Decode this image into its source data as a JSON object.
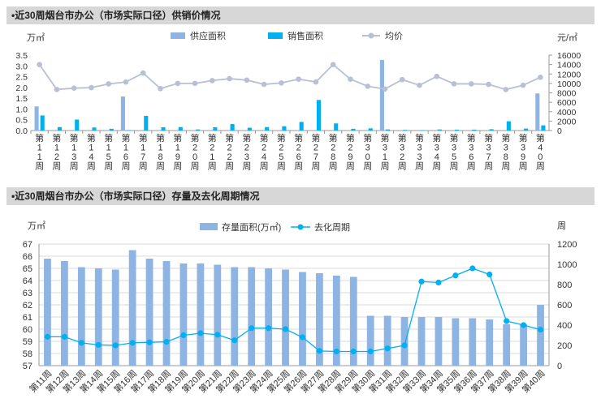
{
  "colors": {
    "supply": "#8eb4e3",
    "sales": "#00b0f0",
    "price": "#b8c0d6",
    "stock": "#8eb4e3",
    "cycle": "#00b0f0",
    "header_bg": "#d7d7d7",
    "grid": "#d9d9d9"
  },
  "chart_data": [
    {
      "type": "bar",
      "title": "•近30周烟台市办公（市场实际口径）供销价情况",
      "left_unit": "万㎡",
      "right_unit": "元/㎡",
      "categories": [
        "第11周",
        "第12周",
        "第13周",
        "第14周",
        "第15周",
        "第16周",
        "第17周",
        "第18周",
        "第19周",
        "第20周",
        "第21周",
        "第22周",
        "第23周",
        "第24周",
        "第25周",
        "第26周",
        "第27周",
        "第28周",
        "第29周",
        "第30周",
        "第31周",
        "第32周",
        "第33周",
        "第34周",
        "第35周",
        "第36周",
        "第37周",
        "第38周",
        "第39周",
        "第40周"
      ],
      "ylim_left": [
        0,
        3.5
      ],
      "yticks_left": [
        "0.0",
        "0.5",
        "1.0",
        "1.5",
        "2.0",
        "2.5",
        "3.0",
        "3.5"
      ],
      "ylim_right": [
        0,
        16000
      ],
      "yticks_right": [
        "0",
        "2000",
        "4000",
        "6000",
        "8000",
        "10000",
        "12000",
        "14000",
        "16000"
      ],
      "legend_position": "top",
      "series": [
        {
          "name": "供应面积",
          "kind": "bar",
          "axis": "left",
          "values": [
            1.12,
            0,
            0,
            0,
            0,
            1.58,
            0,
            0,
            0,
            0,
            0,
            0,
            0,
            0,
            0,
            0,
            0,
            0,
            0,
            0,
            3.28,
            0,
            0,
            0,
            0,
            0,
            0,
            0,
            0,
            1.72
          ]
        },
        {
          "name": "销售面积",
          "kind": "bar",
          "axis": "left",
          "values": [
            0.7,
            0.16,
            0.51,
            0.14,
            0.08,
            0.02,
            0.68,
            0.15,
            0.16,
            0.05,
            0.15,
            0.3,
            0.13,
            0.16,
            0.2,
            0.4,
            1.42,
            0.33,
            0.08,
            0.1,
            0.05,
            0.03,
            0.02,
            0.05,
            0.04,
            0.04,
            0.06,
            0.43,
            0.09,
            0.24
          ]
        },
        {
          "name": "均价",
          "kind": "line",
          "axis": "right",
          "values": [
            14000,
            8700,
            9000,
            9100,
            9900,
            10300,
            12200,
            8900,
            10000,
            10000,
            10600,
            11000,
            10700,
            9800,
            10100,
            10900,
            10300,
            14000,
            10900,
            9400,
            8800,
            10800,
            9600,
            11500,
            9900,
            9900,
            9800,
            8700,
            9600,
            11300
          ]
        }
      ]
    },
    {
      "type": "bar",
      "title": "•近30周烟台市办公（市场实际口径）存量及去化周期情况",
      "left_unit": "万㎡",
      "right_unit": "周",
      "categories": [
        "第11周",
        "第12周",
        "第13周",
        "第14周",
        "第15周",
        "第16周",
        "第17周",
        "第18周",
        "第19周",
        "第20周",
        "第21周",
        "第22周",
        "第23周",
        "第24周",
        "第25周",
        "第26周",
        "第27周",
        "第28周",
        "第29周",
        "第30周",
        "第31周",
        "第32周",
        "第33周",
        "第34周",
        "第35周",
        "第36周",
        "第37周",
        "第38周",
        "第39周",
        "第40周"
      ],
      "ylim_left": [
        57,
        67
      ],
      "yticks_left": [
        "57",
        "58",
        "59",
        "60",
        "61",
        "62",
        "63",
        "64",
        "65",
        "66",
        "67"
      ],
      "ylim_right": [
        0,
        1200
      ],
      "yticks_right": [
        "0",
        "200",
        "400",
        "600",
        "800",
        "1000",
        "1200"
      ],
      "legend_position": "top",
      "series": [
        {
          "name": "存量面积(万㎡)",
          "kind": "bar",
          "axis": "left",
          "values": [
            65.8,
            65.6,
            65.1,
            65.0,
            64.9,
            66.5,
            65.8,
            65.6,
            65.4,
            65.4,
            65.3,
            65.1,
            65.1,
            65.0,
            64.9,
            64.7,
            64.6,
            64.4,
            64.3,
            61.1,
            61.1,
            61.0,
            61.0,
            61.0,
            60.9,
            60.9,
            60.8,
            60.4,
            60.4,
            62.0
          ]
        },
        {
          "name": "去化周期",
          "kind": "line",
          "axis": "right",
          "values": [
            285,
            285,
            225,
            205,
            200,
            225,
            230,
            235,
            300,
            320,
            305,
            250,
            370,
            370,
            360,
            280,
            145,
            140,
            140,
            140,
            170,
            200,
            830,
            820,
            890,
            960,
            900,
            440,
            400,
            355
          ]
        }
      ]
    }
  ]
}
